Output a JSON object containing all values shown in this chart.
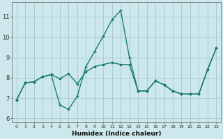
{
  "xlabel": "Humidex (Indice chaleur)",
  "bg_color": "#cce8ec",
  "grid_color": "#aacccc",
  "line_color": "#1a7a6e",
  "xlim": [
    -0.5,
    23.5
  ],
  "ylim": [
    5.8,
    11.7
  ],
  "yticks": [
    6,
    7,
    8,
    9,
    10,
    11
  ],
  "xticks": [
    0,
    1,
    2,
    3,
    4,
    5,
    6,
    7,
    8,
    9,
    10,
    11,
    12,
    13,
    14,
    15,
    16,
    17,
    18,
    19,
    20,
    21,
    22,
    23
  ],
  "line1_x": [
    0,
    1,
    2,
    3,
    4,
    5,
    6,
    7,
    8,
    9,
    10,
    11,
    12,
    13,
    14,
    15,
    16,
    17,
    18,
    19,
    20,
    21,
    22,
    23
  ],
  "line1_y": [
    6.9,
    7.75,
    7.8,
    8.05,
    8.15,
    6.65,
    6.45,
    7.1,
    8.55,
    9.3,
    10.05,
    10.85,
    11.3,
    9.0,
    7.35,
    7.35,
    7.85,
    7.65,
    7.35,
    7.2,
    7.2,
    7.2,
    8.4,
    9.45
  ],
  "line2_x": [
    0,
    1,
    2,
    3,
    4,
    5,
    6,
    7,
    8,
    9,
    10,
    11,
    12,
    13,
    14,
    15,
    16,
    17,
    18,
    19,
    20,
    21,
    22,
    23
  ],
  "line2_y": [
    6.9,
    7.75,
    7.8,
    8.05,
    8.15,
    7.95,
    8.2,
    7.7,
    8.3,
    8.55,
    8.65,
    8.75,
    8.65,
    8.65,
    7.35,
    7.35,
    7.85,
    7.65,
    7.35,
    7.2,
    7.2,
    7.2,
    8.4,
    9.45
  ],
  "xtick_fontsize": 4.5,
  "ytick_fontsize": 6.0,
  "xlabel_fontsize": 6.5
}
